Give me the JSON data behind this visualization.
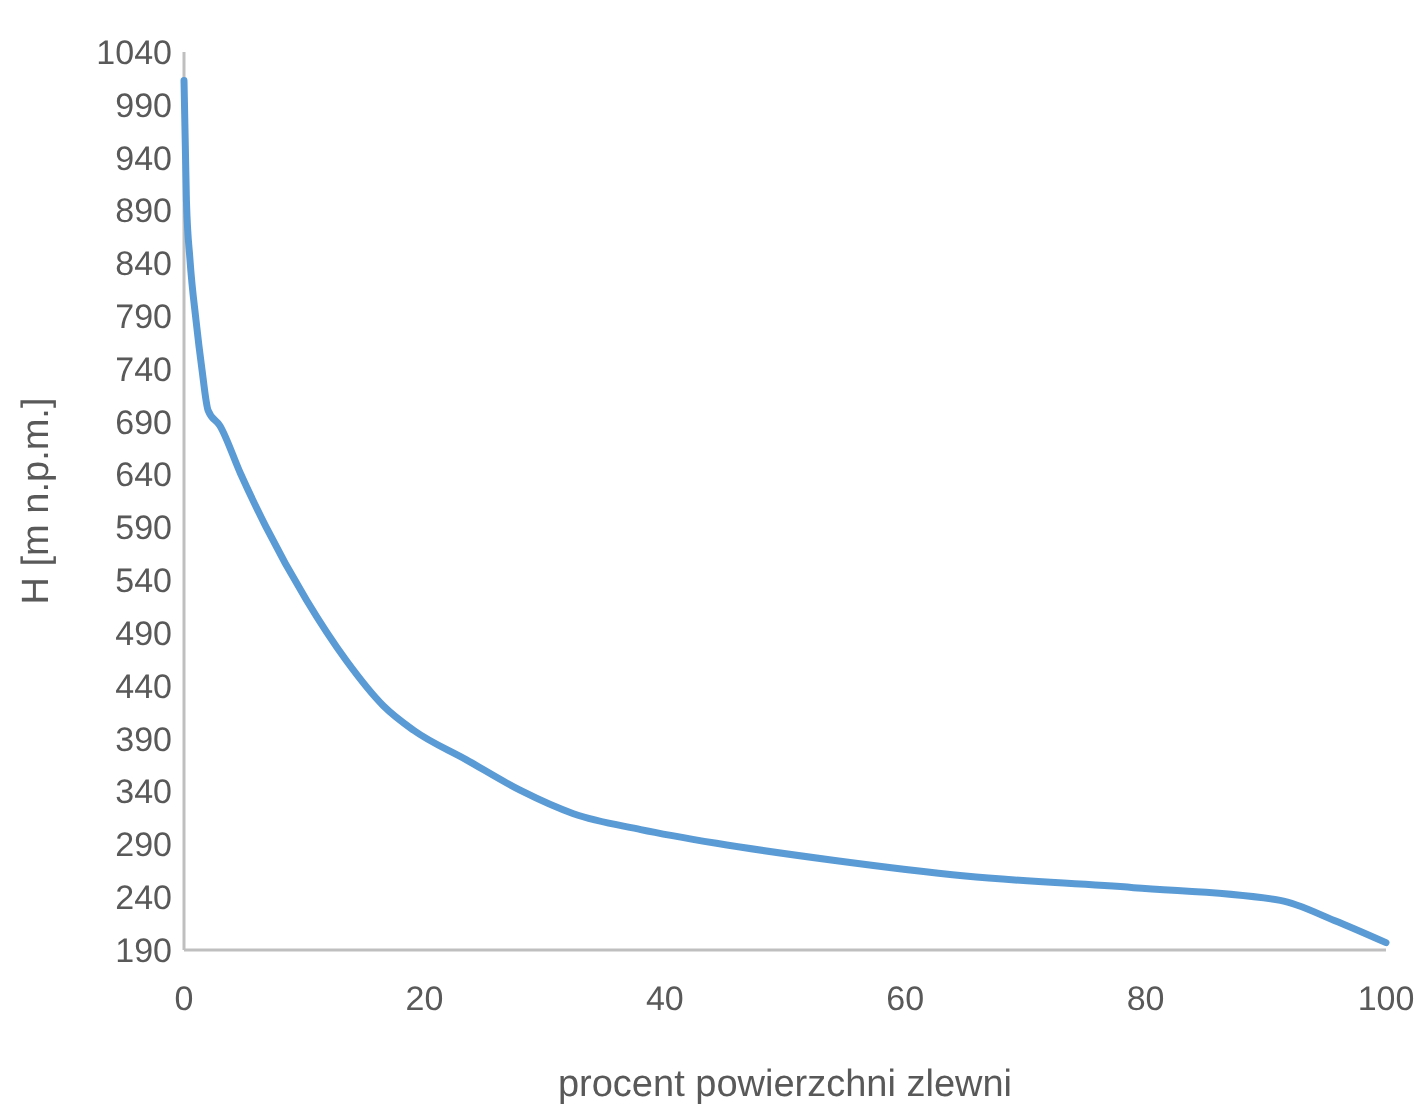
{
  "chart_data": {
    "type": "line",
    "xlabel": "procent powierzchni zlewni",
    "ylabel": "H [m n.p.m.]",
    "x": [
      0,
      0.2,
      0.5,
      1,
      1.5,
      2,
      3,
      4.7,
      6.8,
      10.2,
      13.5,
      16.6,
      19.1,
      23.5,
      28,
      32.4,
      38,
      44.3,
      54,
      65,
      79,
      91.2,
      95.7,
      100
    ],
    "series": [
      {
        "color": "#5b9bd5",
        "values": [
          1013,
          900,
          843,
          786,
          739,
          701,
          686,
          641,
          591,
          521,
          464,
          421,
          398,
          370,
          341,
          319,
          304,
          291,
          275,
          260,
          249,
          237,
          218,
          197
        ]
      }
    ],
    "xlim": [
      0,
      100
    ],
    "xticks": [
      0,
      20,
      40,
      60,
      80,
      100
    ],
    "ylim": [
      190,
      1040
    ],
    "yticks": [
      190,
      240,
      290,
      340,
      390,
      440,
      490,
      540,
      590,
      640,
      690,
      740,
      790,
      840,
      890,
      940,
      990,
      1040
    ],
    "grid": false,
    "marker": "none",
    "line_style": "solid"
  }
}
